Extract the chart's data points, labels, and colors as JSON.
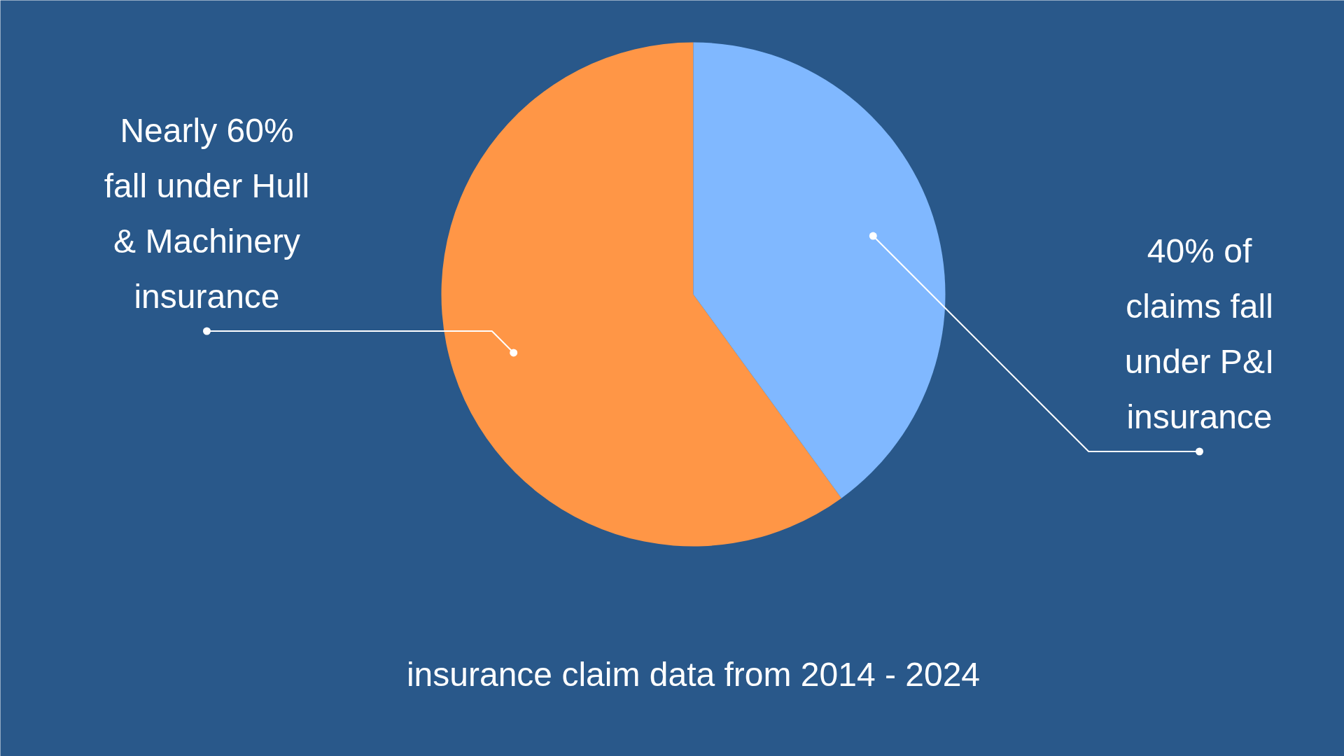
{
  "chart_data": {
    "type": "pie",
    "categories": [
      "Nearly 60%\nfall under Hull\n& Machinery\ninsurance",
      "40% of\nclaims fall\nunder P&I\ninsurance"
    ],
    "values": [
      60,
      40
    ],
    "colors": [
      "#ff9646",
      "#80b8ff"
    ],
    "annotations": [
      "insurance claim data from 2014 - 2024"
    ]
  }
}
